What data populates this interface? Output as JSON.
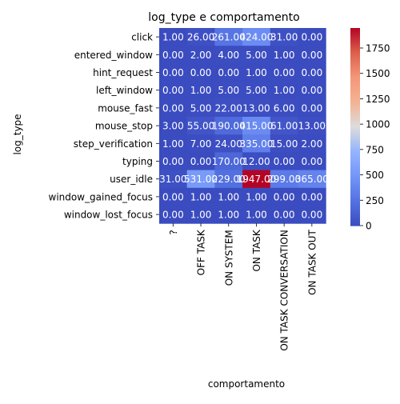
{
  "chart_data": {
    "type": "heatmap",
    "title": "log_type e comportamento",
    "xlabel": "comportamento",
    "ylabel": "log_type",
    "x_categories": [
      "?",
      "OFF TASK",
      "ON SYSTEM",
      "ON TASK",
      "ON TASK CONVERSATION",
      "ON TASK OUT"
    ],
    "y_categories": [
      "click",
      "entered_window",
      "hint_request",
      "left_window",
      "mouse_fast",
      "mouse_stop",
      "step_verification",
      "typing",
      "user_idle",
      "window_gained_focus",
      "window_lost_focus"
    ],
    "values": [
      [
        1.0,
        26.0,
        261.0,
        424.0,
        31.0,
        0.0
      ],
      [
        0.0,
        2.0,
        4.0,
        5.0,
        1.0,
        0.0
      ],
      [
        0.0,
        0.0,
        0.0,
        1.0,
        0.0,
        0.0
      ],
      [
        0.0,
        1.0,
        5.0,
        5.0,
        1.0,
        0.0
      ],
      [
        0.0,
        5.0,
        22.0,
        13.0,
        6.0,
        0.0
      ],
      [
        3.0,
        55.0,
        190.0,
        415.0,
        61.0,
        13.0
      ],
      [
        1.0,
        7.0,
        24.0,
        335.0,
        15.0,
        2.0
      ],
      [
        0.0,
        0.0,
        170.0,
        12.0,
        0.0,
        0.0
      ],
      [
        31.0,
        531.0,
        229.0,
        1947.0,
        299.0,
        365.0
      ],
      [
        0.0,
        1.0,
        1.0,
        1.0,
        0.0,
        0.0
      ],
      [
        0.0,
        1.0,
        1.0,
        1.0,
        0.0,
        0.0
      ]
    ],
    "value_format": "2 decimals",
    "colormap": "coolwarm",
    "colors": {
      "low": "#3b4cc0",
      "mid": "#dddcdc",
      "high": "#b40426"
    },
    "colorbar": {
      "range": [
        0,
        1947
      ],
      "ticks": [
        0,
        250,
        500,
        750,
        1000,
        1250,
        1500,
        1750
      ],
      "tick_labels": [
        "0",
        "250",
        "500",
        "750",
        "1000",
        "1250",
        "1500",
        "1750"
      ]
    },
    "grid": false,
    "legend": "colorbar-right"
  }
}
